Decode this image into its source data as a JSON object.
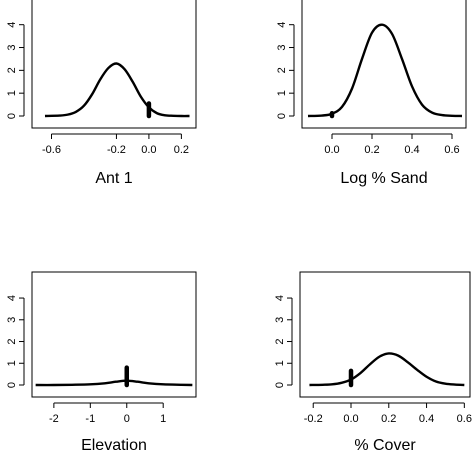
{
  "chart_data": [
    {
      "type": "line",
      "xlabel": "Ant 1",
      "xlim": [
        -0.72,
        0.29
      ],
      "ylim": [
        0,
        4.6
      ],
      "xticks": [
        -0.6,
        -0.2,
        0.0,
        0.2
      ],
      "xtick_labels": [
        "-0.6",
        "-0.2",
        "0.0",
        "0.2"
      ],
      "yticks": [
        0,
        1,
        2,
        3,
        4
      ],
      "ytick_labels": [
        "0",
        "1",
        "2",
        "3",
        "4"
      ],
      "series": [
        {
          "x": [
            -0.64,
            -0.55,
            -0.5,
            -0.45,
            -0.4,
            -0.35,
            -0.3,
            -0.25,
            -0.2,
            -0.15,
            -0.1,
            -0.05,
            0.0,
            0.05,
            0.1,
            0.15,
            0.2,
            0.25
          ],
          "values": [
            0.0,
            0.02,
            0.06,
            0.18,
            0.45,
            0.95,
            1.6,
            2.1,
            2.3,
            2.05,
            1.5,
            0.85,
            0.38,
            0.12,
            0.03,
            0.01,
            0.0,
            0.0
          ]
        }
      ],
      "marker": {
        "x": 0.0,
        "y_from": 0.0,
        "y_to": 0.55
      }
    },
    {
      "type": "line",
      "xlabel": "Log % Sand",
      "xlim": [
        -0.15,
        0.67
      ],
      "ylim": [
        0,
        4.6
      ],
      "xticks": [
        0.0,
        0.2,
        0.4,
        0.6
      ],
      "xtick_labels": [
        "0.0",
        "0.2",
        "0.4",
        "0.6"
      ],
      "yticks": [
        0,
        1,
        2,
        3,
        4
      ],
      "ytick_labels": [
        "0",
        "1",
        "2",
        "3",
        "4"
      ],
      "series": [
        {
          "x": [
            -0.12,
            -0.05,
            0.0,
            0.05,
            0.1,
            0.15,
            0.2,
            0.25,
            0.3,
            0.35,
            0.4,
            0.45,
            0.5,
            0.55,
            0.6,
            0.65
          ],
          "values": [
            0.0,
            0.02,
            0.1,
            0.4,
            1.2,
            2.5,
            3.65,
            4.0,
            3.6,
            2.5,
            1.3,
            0.5,
            0.15,
            0.04,
            0.01,
            0.0
          ]
        }
      ],
      "marker": {
        "x": 0.0,
        "y_from": 0.0,
        "y_to": 0.12
      }
    },
    {
      "type": "line",
      "xlabel": "Elevation",
      "xlim": [
        -2.6,
        1.9
      ],
      "ylim": [
        0,
        4.6
      ],
      "xticks": [
        -2,
        -1,
        0,
        1
      ],
      "xtick_labels": [
        "-2",
        "-1",
        "0",
        "1"
      ],
      "yticks": [
        0,
        1,
        2,
        3,
        4
      ],
      "ytick_labels": [
        "0",
        "1",
        "2",
        "3",
        "4"
      ],
      "series": [
        {
          "x": [
            -2.5,
            -2.0,
            -1.5,
            -1.0,
            -0.6,
            -0.3,
            0.0,
            0.3,
            0.6,
            1.0,
            1.5,
            1.8
          ],
          "values": [
            0.0,
            0.0,
            0.01,
            0.03,
            0.08,
            0.15,
            0.2,
            0.15,
            0.08,
            0.03,
            0.01,
            0.0
          ]
        }
      ],
      "marker": {
        "x": 0.0,
        "y_from": 0.0,
        "y_to": 0.8
      }
    },
    {
      "type": "line",
      "xlabel": "% Cover",
      "xlim": [
        -0.27,
        0.63
      ],
      "ylim": [
        0,
        4.6
      ],
      "xticks": [
        -0.2,
        0.0,
        0.2,
        0.4,
        0.6
      ],
      "xtick_labels": [
        "-0.2",
        "0.0",
        "0.2",
        "0.4",
        "0.6"
      ],
      "yticks": [
        0,
        1,
        2,
        3,
        4
      ],
      "ytick_labels": [
        "0",
        "1",
        "2",
        "3",
        "4"
      ],
      "series": [
        {
          "x": [
            -0.22,
            -0.15,
            -0.1,
            -0.05,
            0.0,
            0.05,
            0.1,
            0.15,
            0.2,
            0.25,
            0.3,
            0.35,
            0.4,
            0.45,
            0.5,
            0.55,
            0.6
          ],
          "values": [
            0.0,
            0.01,
            0.03,
            0.1,
            0.25,
            0.55,
            0.95,
            1.3,
            1.45,
            1.35,
            1.05,
            0.7,
            0.38,
            0.16,
            0.06,
            0.02,
            0.0
          ]
        }
      ],
      "marker": {
        "x": 0.0,
        "y_from": 0.0,
        "y_to": 0.65
      }
    }
  ]
}
